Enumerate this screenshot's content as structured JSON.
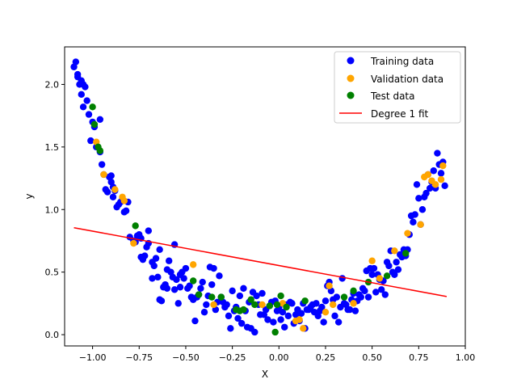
{
  "chart_data": {
    "type": "scatter",
    "xlabel": "X",
    "ylabel": "y",
    "xlim": [
      -1.15,
      1.0
    ],
    "ylim": [
      -0.09,
      2.3
    ],
    "xticks": [
      -1.0,
      -0.75,
      -0.5,
      -0.25,
      0.0,
      0.25,
      0.5,
      0.75,
      1.0
    ],
    "xtick_labels": [
      "−1.00",
      "−0.75",
      "−0.50",
      "−0.25",
      "0.00",
      "0.25",
      "0.50",
      "0.75",
      "1.00"
    ],
    "yticks": [
      0.0,
      0.5,
      1.0,
      1.5,
      2.0
    ],
    "ytick_labels": [
      "0.0",
      "0.5",
      "1.0",
      "1.5",
      "2.0"
    ],
    "grid": false,
    "legend_position": "top-right",
    "series": [
      {
        "name": "Training data",
        "kind": "scatter",
        "color": "#0000ff",
        "points": [
          [
            -1.09,
            2.18
          ],
          [
            -1.1,
            2.14
          ],
          [
            -1.08,
            2.08
          ],
          [
            -1.08,
            2.06
          ],
          [
            -1.07,
            2.0
          ],
          [
            -1.06,
            2.03
          ],
          [
            -1.05,
            2.0
          ],
          [
            -1.04,
            1.98
          ],
          [
            -1.06,
            1.92
          ],
          [
            -1.05,
            1.82
          ],
          [
            -1.03,
            1.87
          ],
          [
            -1.02,
            1.76
          ],
          [
            -1.01,
            1.55
          ],
          [
            -1.0,
            1.7
          ],
          [
            -0.99,
            1.66
          ],
          [
            -0.98,
            1.5
          ],
          [
            -0.96,
            1.72
          ],
          [
            -0.96,
            1.46
          ],
          [
            -0.95,
            1.36
          ],
          [
            -0.94,
            1.28
          ],
          [
            -0.93,
            1.16
          ],
          [
            -0.92,
            1.14
          ],
          [
            -0.91,
            1.26
          ],
          [
            -0.9,
            1.27
          ],
          [
            -0.9,
            1.22
          ],
          [
            -0.89,
            1.18
          ],
          [
            -0.89,
            1.1
          ],
          [
            -0.88,
            1.15
          ],
          [
            -0.87,
            1.02
          ],
          [
            -0.86,
            1.04
          ],
          [
            -0.85,
            1.06
          ],
          [
            -0.84,
            1.08
          ],
          [
            -0.83,
            0.98
          ],
          [
            -0.82,
            0.99
          ],
          [
            -0.81,
            1.06
          ],
          [
            -0.8,
            0.78
          ],
          [
            -0.78,
            0.75
          ],
          [
            -0.77,
            0.74
          ],
          [
            -0.76,
            0.79
          ],
          [
            -0.75,
            0.8
          ],
          [
            -0.74,
            0.77
          ],
          [
            -0.74,
            0.62
          ],
          [
            -0.73,
            0.6
          ],
          [
            -0.72,
            0.63
          ],
          [
            -0.71,
            0.7
          ],
          [
            -0.7,
            0.73
          ],
          [
            -0.7,
            0.83
          ],
          [
            -0.68,
            0.45
          ],
          [
            -0.68,
            0.58
          ],
          [
            -0.67,
            0.55
          ],
          [
            -0.66,
            0.61
          ],
          [
            -0.65,
            0.46
          ],
          [
            -0.64,
            0.68
          ],
          [
            -0.64,
            0.28
          ],
          [
            -0.63,
            0.27
          ],
          [
            -0.62,
            0.38
          ],
          [
            -0.61,
            0.4
          ],
          [
            -0.6,
            0.37
          ],
          [
            -0.6,
            0.52
          ],
          [
            -0.59,
            0.59
          ],
          [
            -0.58,
            0.5
          ],
          [
            -0.57,
            0.46
          ],
          [
            -0.56,
            0.72
          ],
          [
            -0.56,
            0.36
          ],
          [
            -0.55,
            0.44
          ],
          [
            -0.54,
            0.25
          ],
          [
            -0.53,
            0.38
          ],
          [
            -0.53,
            0.48
          ],
          [
            -0.52,
            0.5
          ],
          [
            -0.51,
            0.45
          ],
          [
            -0.5,
            0.53
          ],
          [
            -0.49,
            0.37
          ],
          [
            -0.48,
            0.39
          ],
          [
            -0.47,
            0.3
          ],
          [
            -0.46,
            0.28
          ],
          [
            -0.45,
            0.11
          ],
          [
            -0.44,
            0.3
          ],
          [
            -0.43,
            0.32
          ],
          [
            -0.42,
            0.37
          ],
          [
            -0.41,
            0.42
          ],
          [
            -0.4,
            0.18
          ],
          [
            -0.39,
            0.24
          ],
          [
            -0.38,
            0.31
          ],
          [
            -0.37,
            0.54
          ],
          [
            -0.36,
            0.4
          ],
          [
            -0.35,
            0.53
          ],
          [
            -0.34,
            0.2
          ],
          [
            -0.33,
            0.26
          ],
          [
            -0.32,
            0.47
          ],
          [
            -0.31,
            0.3
          ],
          [
            -0.3,
            0.26
          ],
          [
            -0.29,
            0.22
          ],
          [
            -0.28,
            0.24
          ],
          [
            -0.27,
            0.15
          ],
          [
            -0.26,
            0.05
          ],
          [
            -0.25,
            0.35
          ],
          [
            -0.24,
            0.19
          ],
          [
            -0.23,
            0.22
          ],
          [
            -0.22,
            0.13
          ],
          [
            -0.21,
            0.31
          ],
          [
            -0.2,
            0.09
          ],
          [
            -0.19,
            0.37
          ],
          [
            -0.18,
            0.19
          ],
          [
            -0.17,
            0.06
          ],
          [
            -0.16,
            0.26
          ],
          [
            -0.15,
            0.05
          ],
          [
            -0.14,
            0.34
          ],
          [
            -0.13,
            0.02
          ],
          [
            -0.12,
            0.31
          ],
          [
            -0.11,
            0.24
          ],
          [
            -0.1,
            0.16
          ],
          [
            -0.09,
            0.33
          ],
          [
            -0.08,
            0.16
          ],
          [
            -0.07,
            0.2
          ],
          [
            -0.06,
            0.12
          ],
          [
            -0.05,
            0.23
          ],
          [
            -0.04,
            0.26
          ],
          [
            -0.03,
            0.1
          ],
          [
            -0.02,
            0.27
          ],
          [
            -0.01,
            0.19
          ],
          [
            0.0,
            0.22
          ],
          [
            0.01,
            0.12
          ],
          [
            0.02,
            0.18
          ],
          [
            0.03,
            0.06
          ],
          [
            0.04,
            0.24
          ],
          [
            0.05,
            0.15
          ],
          [
            0.06,
            0.26
          ],
          [
            0.07,
            0.25
          ],
          [
            0.08,
            0.09
          ],
          [
            0.09,
            0.16
          ],
          [
            0.1,
            0.2
          ],
          [
            0.11,
            0.11
          ],
          [
            0.12,
            0.17
          ],
          [
            0.13,
            0.25
          ],
          [
            0.14,
            0.05
          ],
          [
            0.15,
            0.2
          ],
          [
            0.16,
            0.2
          ],
          [
            0.17,
            0.22
          ],
          [
            0.18,
            0.24
          ],
          [
            0.19,
            0.18
          ],
          [
            0.2,
            0.25
          ],
          [
            0.21,
            0.15
          ],
          [
            0.22,
            0.19
          ],
          [
            0.23,
            0.22
          ],
          [
            0.24,
            0.1
          ],
          [
            0.25,
            0.27
          ],
          [
            0.26,
            0.39
          ],
          [
            0.27,
            0.42
          ],
          [
            0.28,
            0.35
          ],
          [
            0.29,
            0.28
          ],
          [
            0.3,
            0.15
          ],
          [
            0.31,
            0.3
          ],
          [
            0.32,
            0.1
          ],
          [
            0.33,
            0.22
          ],
          [
            0.34,
            0.45
          ],
          [
            0.35,
            0.25
          ],
          [
            0.36,
            0.24
          ],
          [
            0.37,
            0.2
          ],
          [
            0.38,
            0.2
          ],
          [
            0.39,
            0.28
          ],
          [
            0.4,
            0.33
          ],
          [
            0.41,
            0.19
          ],
          [
            0.42,
            0.27
          ],
          [
            0.43,
            0.32
          ],
          [
            0.44,
            0.3
          ],
          [
            0.45,
            0.37
          ],
          [
            0.46,
            0.35
          ],
          [
            0.47,
            0.51
          ],
          [
            0.48,
            0.3
          ],
          [
            0.49,
            0.53
          ],
          [
            0.5,
            0.48
          ],
          [
            0.51,
            0.53
          ],
          [
            0.52,
            0.34
          ],
          [
            0.53,
            0.48
          ],
          [
            0.54,
            0.44
          ],
          [
            0.55,
            0.36
          ],
          [
            0.56,
            0.43
          ],
          [
            0.57,
            0.32
          ],
          [
            0.58,
            0.58
          ],
          [
            0.59,
            0.55
          ],
          [
            0.6,
            0.67
          ],
          [
            0.61,
            0.5
          ],
          [
            0.62,
            0.48
          ],
          [
            0.63,
            0.58
          ],
          [
            0.64,
            0.52
          ],
          [
            0.65,
            0.64
          ],
          [
            0.66,
            0.62
          ],
          [
            0.67,
            0.68
          ],
          [
            0.68,
            0.63
          ],
          [
            0.69,
            0.68
          ],
          [
            0.7,
            0.8
          ],
          [
            0.71,
            0.95
          ],
          [
            0.72,
            0.9
          ],
          [
            0.73,
            0.96
          ],
          [
            0.74,
            1.2
          ],
          [
            0.75,
            1.09
          ],
          [
            0.76,
            0.88
          ],
          [
            0.77,
            1.0
          ],
          [
            0.78,
            1.1
          ],
          [
            0.79,
            1.13
          ],
          [
            0.8,
            1.28
          ],
          [
            0.81,
            1.17
          ],
          [
            0.82,
            1.22
          ],
          [
            0.83,
            1.31
          ],
          [
            0.84,
            1.17
          ],
          [
            0.85,
            1.45
          ],
          [
            0.86,
            1.36
          ],
          [
            0.87,
            1.29
          ],
          [
            0.88,
            1.38
          ],
          [
            0.89,
            1.19
          ]
        ]
      },
      {
        "name": "Validation data",
        "kind": "scatter",
        "color": "#ffa500",
        "points": [
          [
            -0.98,
            1.54
          ],
          [
            -0.94,
            1.28
          ],
          [
            -0.88,
            1.16
          ],
          [
            -0.84,
            1.1
          ],
          [
            -0.83,
            1.07
          ],
          [
            -0.78,
            0.73
          ],
          [
            -0.46,
            0.56
          ],
          [
            -0.35,
            0.24
          ],
          [
            -0.09,
            0.24
          ],
          [
            0.02,
            0.25
          ],
          [
            0.09,
            0.11
          ],
          [
            0.11,
            0.12
          ],
          [
            0.13,
            0.05
          ],
          [
            0.25,
            0.18
          ],
          [
            0.27,
            0.39
          ],
          [
            0.29,
            0.24
          ],
          [
            0.4,
            0.25
          ],
          [
            0.5,
            0.59
          ],
          [
            0.54,
            0.45
          ],
          [
            0.62,
            0.67
          ],
          [
            0.69,
            0.81
          ],
          [
            0.76,
            0.88
          ],
          [
            0.78,
            1.26
          ],
          [
            0.8,
            1.28
          ],
          [
            0.82,
            1.23
          ],
          [
            0.84,
            1.2
          ],
          [
            0.87,
            1.24
          ],
          [
            0.88,
            1.35
          ]
        ]
      },
      {
        "name": "Test data",
        "kind": "scatter",
        "color": "#008000",
        "points": [
          [
            -1.0,
            1.82
          ],
          [
            -0.99,
            1.68
          ],
          [
            -0.97,
            1.5
          ],
          [
            -0.96,
            1.47
          ],
          [
            -0.77,
            0.87
          ],
          [
            -0.46,
            0.43
          ],
          [
            -0.43,
            0.32
          ],
          [
            -0.36,
            0.3
          ],
          [
            -0.31,
            0.3
          ],
          [
            -0.23,
            0.2
          ],
          [
            -0.21,
            0.19
          ],
          [
            -0.19,
            0.2
          ],
          [
            -0.15,
            0.28
          ],
          [
            -0.13,
            0.24
          ],
          [
            -0.05,
            0.23
          ],
          [
            -0.02,
            0.02
          ],
          [
            -0.01,
            0.24
          ],
          [
            0.01,
            0.31
          ],
          [
            0.04,
            0.22
          ],
          [
            0.14,
            0.27
          ],
          [
            0.35,
            0.3
          ],
          [
            0.4,
            0.35
          ],
          [
            0.48,
            0.42
          ],
          [
            0.58,
            0.47
          ],
          [
            0.68,
            0.65
          ]
        ]
      },
      {
        "name": "Degree 1 fit",
        "kind": "line",
        "color": "#ff0000",
        "points": [
          [
            -1.1,
            0.855
          ],
          [
            0.9,
            0.305
          ]
        ]
      }
    ]
  }
}
